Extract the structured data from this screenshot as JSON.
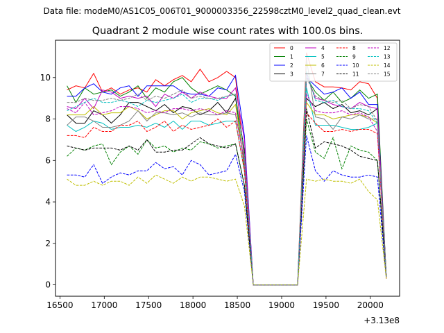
{
  "header": {
    "data_file": "Data file: modeM0/AS1C05_006T01_9000003356_22598cztM0_level2_quad_clean.evt"
  },
  "chart_data": {
    "type": "line",
    "title": "Quadrant 2 module wise count rates with 100.0s bins.",
    "xlabel": "",
    "ylabel": "",
    "x_offset_label": "+3.13e8",
    "x_offset": 313000000,
    "xlim": [
      16450,
      20330
    ],
    "ylim": [
      -0.55,
      11.8
    ],
    "x_ticks": [
      16500,
      17000,
      17500,
      18000,
      18500,
      19000,
      19500,
      20000
    ],
    "y_ticks": [
      0,
      2,
      4,
      6,
      8,
      10
    ],
    "grid": false,
    "legend_position": "top-right",
    "x": [
      16580,
      16680,
      16780,
      16880,
      16980,
      17080,
      17180,
      17280,
      17380,
      17480,
      17580,
      17680,
      17780,
      17880,
      17980,
      18080,
      18180,
      18280,
      18380,
      18480,
      18580,
      18680,
      18780,
      18880,
      18980,
      19080,
      19180,
      19280,
      19380,
      19480,
      19580,
      19680,
      19780,
      19880,
      19980,
      20080,
      20180
    ],
    "series": [
      {
        "name": "0",
        "color": "#ff0000",
        "dash": "solid",
        "values": [
          9.4,
          9.6,
          9.5,
          10.2,
          9.3,
          9.5,
          9.2,
          9.4,
          9.5,
          9.3,
          9.9,
          9.6,
          9.9,
          10.1,
          9.8,
          10.4,
          9.8,
          10.0,
          10.3,
          10.0,
          6.0,
          0.0,
          0.0,
          0.0,
          0.0,
          0.0,
          0.0,
          11.2,
          9.8,
          9.55,
          9.55,
          9.5,
          9.4,
          9.8,
          9.7,
          9.0,
          0.3
        ]
      },
      {
        "name": "1",
        "color": "#008000",
        "dash": "solid",
        "values": [
          9.6,
          8.8,
          9.5,
          9.2,
          9.3,
          9.4,
          9.1,
          9.3,
          9.6,
          9.0,
          9.5,
          9.3,
          9.8,
          10.0,
          9.5,
          9.2,
          9.4,
          9.6,
          9.4,
          9.1,
          5.6,
          0.0,
          0.0,
          0.0,
          0.0,
          0.0,
          0.0,
          10.0,
          9.3,
          8.9,
          9.3,
          8.8,
          9.0,
          9.4,
          9.0,
          9.2,
          0.4
        ]
      },
      {
        "name": "2",
        "color": "#0000ff",
        "dash": "solid",
        "values": [
          9.1,
          9.1,
          9.5,
          9.7,
          9.3,
          9.2,
          9.5,
          9.6,
          9.1,
          9.6,
          9.6,
          9.6,
          9.6,
          9.3,
          9.2,
          9.2,
          9.1,
          9.5,
          9.4,
          10.1,
          7.2,
          0.0,
          0.0,
          0.0,
          0.0,
          0.0,
          0.0,
          10.0,
          9.6,
          9.2,
          9.3,
          9.5,
          9.0,
          9.3,
          8.7,
          8.7,
          0.4
        ]
      },
      {
        "name": "3",
        "color": "#000000",
        "dash": "solid",
        "values": [
          8.2,
          7.8,
          7.8,
          8.4,
          8.2,
          7.8,
          8.2,
          8.8,
          8.8,
          8.6,
          8.4,
          8.7,
          8.3,
          8.6,
          8.5,
          8.2,
          8.4,
          8.8,
          8.3,
          9.0,
          6.5,
          0.0,
          0.0,
          0.0,
          0.0,
          0.0,
          0.0,
          9.0,
          8.6,
          8.8,
          8.5,
          8.7,
          8.3,
          8.4,
          8.2,
          8.5,
          0.4
        ]
      },
      {
        "name": "4",
        "color": "#bf00bf",
        "dash": "solid",
        "values": [
          8.6,
          8.5,
          9.0,
          8.5,
          9.4,
          9.3,
          9.0,
          9.1,
          9.0,
          9.1,
          8.6,
          9.2,
          9.0,
          9.3,
          9.0,
          9.3,
          9.1,
          9.0,
          9.0,
          9.5,
          7.0,
          0.0,
          0.0,
          0.0,
          0.0,
          0.0,
          0.0,
          10.2,
          9.0,
          8.9,
          8.7,
          8.6,
          8.5,
          8.8,
          8.6,
          8.5,
          0.4
        ]
      },
      {
        "name": "5",
        "color": "#00bfbf",
        "dash": "solid",
        "values": [
          7.7,
          7.4,
          7.6,
          7.9,
          7.8,
          7.5,
          7.6,
          7.6,
          7.7,
          7.6,
          7.8,
          7.6,
          7.9,
          7.5,
          7.9,
          7.9,
          7.7,
          7.8,
          7.9,
          7.9,
          5.5,
          0.0,
          0.0,
          0.0,
          0.0,
          0.0,
          0.0,
          9.5,
          7.7,
          7.7,
          7.7,
          7.6,
          7.5,
          7.5,
          7.6,
          7.8,
          0.4
        ]
      },
      {
        "name": "6",
        "color": "#bfbf00",
        "dash": "solid",
        "values": [
          8.2,
          8.2,
          8.2,
          8.6,
          8.2,
          8.3,
          8.3,
          8.6,
          8.4,
          8.0,
          8.2,
          8.4,
          8.4,
          8.0,
          8.3,
          8.4,
          8.5,
          8.3,
          8.2,
          8.7,
          5.8,
          0.0,
          0.0,
          0.0,
          0.0,
          0.0,
          0.0,
          8.8,
          8.2,
          8.2,
          8.0,
          8.1,
          8.2,
          8.2,
          8.1,
          7.8,
          0.4
        ]
      },
      {
        "name": "7",
        "color": "#808080",
        "dash": "solid",
        "values": [
          7.7,
          8.1,
          8.1,
          7.9,
          7.6,
          7.6,
          7.7,
          7.9,
          8.4,
          7.9,
          8.3,
          8.3,
          8.2,
          8.3,
          8.1,
          8.3,
          8.2,
          8.2,
          8.3,
          8.2,
          6.0,
          0.0,
          0.0,
          0.0,
          0.0,
          0.0,
          0.0,
          10.9,
          8.1,
          8.0,
          7.5,
          8.1,
          8.0,
          8.2,
          8.0,
          8.0,
          0.4
        ]
      },
      {
        "name": "8",
        "color": "#ff0000",
        "dash": "dashed",
        "values": [
          7.2,
          7.2,
          7.1,
          7.6,
          7.4,
          7.4,
          7.7,
          7.7,
          7.9,
          7.4,
          7.6,
          7.9,
          7.4,
          7.7,
          7.5,
          7.6,
          7.7,
          8.0,
          7.6,
          7.9,
          5.5,
          0.0,
          0.0,
          0.0,
          0.0,
          0.0,
          0.0,
          8.3,
          7.8,
          7.4,
          7.4,
          7.5,
          7.4,
          7.5,
          7.5,
          7.3,
          0.4
        ]
      },
      {
        "name": "9",
        "color": "#008000",
        "dash": "dashed",
        "values": [
          6.2,
          6.6,
          6.5,
          6.7,
          6.8,
          5.8,
          6.4,
          6.7,
          6.3,
          7.0,
          6.6,
          6.7,
          6.4,
          6.6,
          6.5,
          6.9,
          6.8,
          6.6,
          6.7,
          6.8,
          4.8,
          0.0,
          0.0,
          0.0,
          0.0,
          0.0,
          0.0,
          8.0,
          6.4,
          6.1,
          7.1,
          5.6,
          6.7,
          6.5,
          6.4,
          6.0,
          0.4
        ]
      },
      {
        "name": "10",
        "color": "#0000ff",
        "dash": "dashed",
        "values": [
          5.3,
          5.3,
          5.2,
          5.8,
          4.9,
          5.2,
          5.4,
          5.3,
          5.5,
          5.5,
          5.9,
          5.6,
          5.7,
          5.3,
          6.0,
          5.8,
          5.3,
          5.4,
          5.5,
          6.3,
          4.5,
          0.0,
          0.0,
          0.0,
          0.0,
          0.0,
          0.0,
          7.2,
          5.5,
          5.0,
          5.5,
          5.3,
          5.2,
          5.2,
          5.3,
          5.2,
          0.3
        ]
      },
      {
        "name": "11",
        "color": "#000000",
        "dash": "dashed",
        "values": [
          6.7,
          6.6,
          6.5,
          6.6,
          6.6,
          6.6,
          6.5,
          6.7,
          6.5,
          7.0,
          6.4,
          6.4,
          6.5,
          6.5,
          6.8,
          7.1,
          6.8,
          6.7,
          6.6,
          6.8,
          4.8,
          0.0,
          0.0,
          0.0,
          0.0,
          0.0,
          0.0,
          8.5,
          6.6,
          6.9,
          6.8,
          6.7,
          6.5,
          6.2,
          6.1,
          6.0,
          0.4
        ]
      },
      {
        "name": "12",
        "color": "#bf00bf",
        "dash": "dashed",
        "values": [
          8.5,
          8.3,
          8.8,
          8.2,
          8.3,
          8.4,
          8.6,
          8.6,
          8.5,
          8.3,
          8.4,
          8.3,
          8.5,
          8.5,
          8.4,
          8.5,
          8.4,
          8.2,
          8.4,
          8.3,
          5.9,
          0.0,
          0.0,
          0.0,
          0.0,
          0.0,
          0.0,
          9.2,
          8.4,
          8.3,
          8.3,
          8.4,
          8.2,
          8.3,
          8.1,
          7.4,
          0.4
        ]
      },
      {
        "name": "13",
        "color": "#00bfbf",
        "dash": "dashed",
        "values": [
          8.4,
          8.6,
          8.8,
          9.0,
          8.8,
          8.8,
          8.9,
          8.8,
          8.6,
          8.9,
          8.8,
          8.9,
          9.0,
          9.2,
          8.8,
          9.0,
          9.0,
          8.9,
          9.1,
          9.2,
          6.3,
          0.0,
          0.0,
          0.0,
          0.0,
          0.0,
          0.0,
          10.3,
          8.9,
          8.8,
          8.9,
          8.6,
          8.5,
          8.5,
          8.4,
          7.8,
          0.4
        ]
      },
      {
        "name": "14",
        "color": "#bfbf00",
        "dash": "dashed",
        "values": [
          5.1,
          4.8,
          4.8,
          5.0,
          4.8,
          5.0,
          5.0,
          4.8,
          5.2,
          4.9,
          5.3,
          5.1,
          4.9,
          5.2,
          5.0,
          5.2,
          5.2,
          5.1,
          5.0,
          5.1,
          3.8,
          0.0,
          0.0,
          0.0,
          0.0,
          0.0,
          0.0,
          5.1,
          5.0,
          5.1,
          5.0,
          5.0,
          4.9,
          5.1,
          4.5,
          4.1,
          0.3
        ]
      },
      {
        "name": "15",
        "color": "#808080",
        "dash": "dashed",
        "values": [
          8.8,
          8.8,
          9.0,
          8.9,
          8.9,
          9.0,
          8.9,
          9.0,
          9.2,
          8.9,
          9.1,
          9.0,
          9.2,
          9.4,
          9.0,
          9.1,
          9.0,
          9.0,
          9.1,
          9.2,
          6.2,
          0.0,
          0.0,
          0.0,
          0.0,
          0.0,
          0.0,
          10.0,
          9.1,
          8.9,
          8.8,
          8.9,
          8.5,
          8.7,
          8.6,
          7.9,
          0.4
        ]
      }
    ]
  }
}
